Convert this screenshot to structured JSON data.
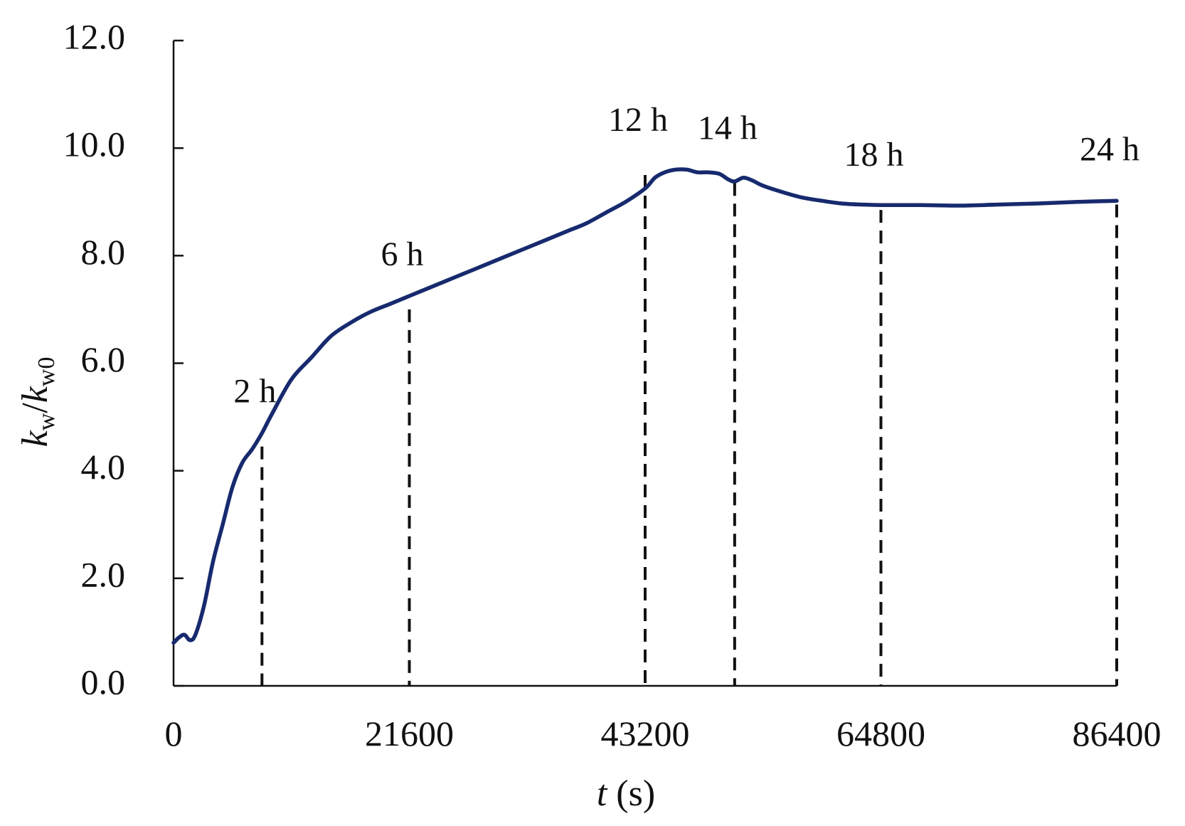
{
  "chart_data": {
    "type": "line",
    "title": "",
    "xlabel": {
      "var": "t",
      "unit": " (s)"
    },
    "ylabel": {
      "base1": "k",
      "sub1": "w",
      "sep": "/",
      "base2": "k",
      "sub2": "w0"
    },
    "xlim": [
      0,
      86400
    ],
    "ylim": [
      0,
      12
    ],
    "xticks": [
      0,
      21600,
      43200,
      64800,
      86400
    ],
    "xtick_labels": [
      "0",
      "21600",
      "43200",
      "64800",
      "86400"
    ],
    "yticks": [
      0,
      2,
      4,
      6,
      8,
      10,
      12
    ],
    "ytick_labels": [
      "0.0",
      "2.0",
      "4.0",
      "6.0",
      "8.0",
      "10.0",
      "12.0"
    ],
    "grid": false,
    "line_color": "#172a6e",
    "series": [
      {
        "x": [
          0,
          500,
          1000,
          1500,
          2000,
          2800,
          3600,
          4500,
          5400,
          6300,
          7200,
          8100,
          9000,
          10800,
          12600,
          14400,
          16200,
          18000,
          19800,
          21600,
          23400,
          25200,
          27000,
          28800,
          30600,
          32400,
          34200,
          36000,
          37800,
          39600,
          41400,
          43200,
          44100,
          45000,
          46000,
          47000,
          48000,
          49000,
          50000,
          50800,
          51400,
          52200,
          53000,
          54000,
          55800,
          57600,
          59400,
          61200,
          63000,
          64800,
          68400,
          72000,
          75600,
          79200,
          82800,
          86400
        ],
        "y": [
          0.8,
          0.9,
          0.95,
          0.85,
          0.95,
          1.5,
          2.3,
          3.0,
          3.7,
          4.15,
          4.4,
          4.7,
          5.05,
          5.7,
          6.1,
          6.5,
          6.75,
          6.95,
          7.1,
          7.25,
          7.4,
          7.55,
          7.7,
          7.85,
          8.0,
          8.15,
          8.3,
          8.45,
          8.6,
          8.8,
          9.0,
          9.25,
          9.45,
          9.55,
          9.6,
          9.6,
          9.55,
          9.55,
          9.52,
          9.42,
          9.38,
          9.45,
          9.4,
          9.3,
          9.18,
          9.08,
          9.02,
          8.97,
          8.95,
          8.94,
          8.94,
          8.93,
          8.95,
          8.97,
          9.0,
          9.02
        ]
      }
    ],
    "markers": [
      {
        "x": 8100,
        "y_top": 4.45,
        "label": "2 h"
      },
      {
        "x": 21600,
        "y_top": 7.0,
        "label": "6 h"
      },
      {
        "x": 43200,
        "y_top": 9.5,
        "label": "12 h"
      },
      {
        "x": 51400,
        "y_top": 9.35,
        "label": "14 h"
      },
      {
        "x": 64800,
        "y_top": 8.85,
        "label": "18 h"
      },
      {
        "x": 86400,
        "y_top": 8.95,
        "label": "24 h"
      }
    ]
  }
}
